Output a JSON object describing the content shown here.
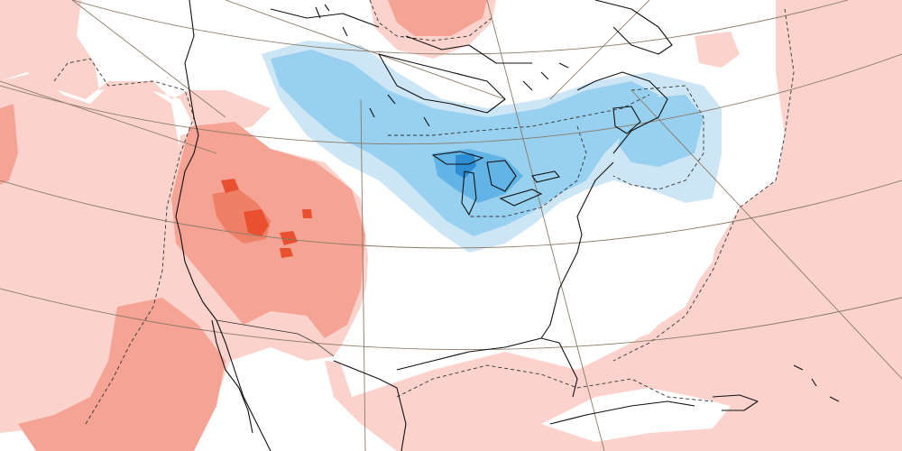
{
  "map": {
    "projection": "polar-stereographic",
    "region": "North America",
    "field": "temperature-anomaly",
    "legend": null,
    "colors": {
      "background": "#ffffff",
      "warm_light": "#fbd3cc",
      "warm_medium": "#f4a394",
      "warm_strong": "#ee8067",
      "warm_extreme": "#e8502f",
      "cold_light": "#cde6f6",
      "cold_medium": "#98d0f0",
      "cold_strong": "#62b4e6",
      "cold_extreme": "#2e8ed3",
      "coastline": "#111111",
      "graticule": "#8a7a66",
      "zero_contour": "#333333"
    },
    "features": [
      "warm-anomaly-western-us",
      "warm-anomaly-atlantic",
      "warm-anomaly-gulf-mexico",
      "warm-anomaly-arctic",
      "cold-anomaly-great-lakes",
      "cold-anomaly-northeast",
      "cold-anomaly-hudson-bay"
    ]
  }
}
